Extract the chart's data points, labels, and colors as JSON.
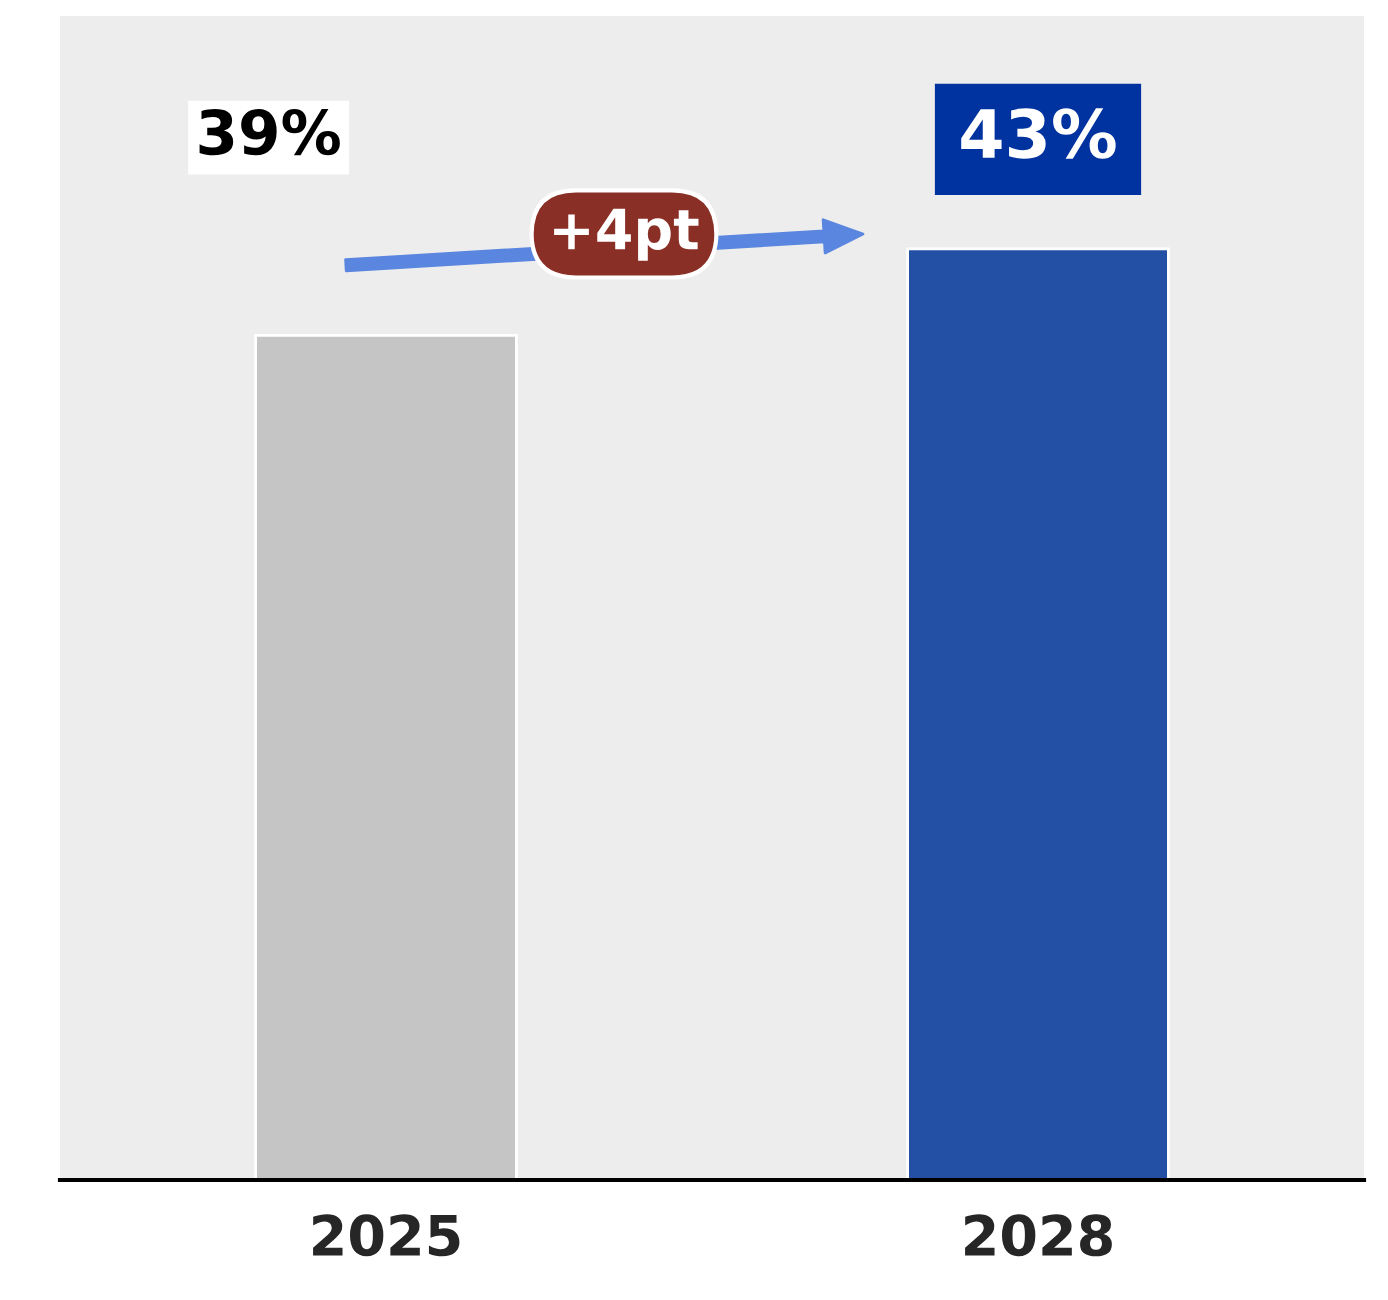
{
  "chart_data": {
    "type": "bar",
    "categories": [
      "2025",
      "2028"
    ],
    "values": [
      39,
      43
    ],
    "colors": [
      "#c5c5c5",
      "#2350a5"
    ],
    "value_labels": [
      "39%",
      "43%"
    ],
    "tick_labels": "x",
    "grid": false,
    "legend": false,
    "annotations": [
      "+4pt"
    ]
  }
}
